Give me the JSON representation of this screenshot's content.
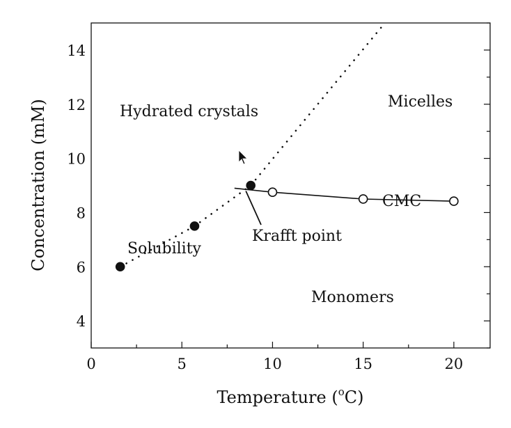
{
  "chart_data": {
    "type": "scatter",
    "xlabel_main": "Temperature (",
    "xlabel_sup": "o",
    "xlabel_end": "C)",
    "ylabel": "Concentration (mM)",
    "xlim": [
      0,
      22
    ],
    "ylim": [
      3,
      15
    ],
    "x_ticks": [
      0,
      5,
      10,
      15,
      20
    ],
    "y_ticks": [
      4,
      6,
      8,
      10,
      12,
      14
    ],
    "series": [
      {
        "name": "Solubility",
        "marker": "filled-circle",
        "x": [
          1.6,
          5.7,
          8.8
        ],
        "y": [
          6.0,
          7.5,
          9.0
        ]
      },
      {
        "name": "CMC",
        "marker": "open-circle",
        "x": [
          10,
          15,
          20
        ],
        "y": [
          8.75,
          8.5,
          8.42
        ]
      }
    ],
    "solubility_curve": {
      "style": "dotted",
      "x": [
        1.6,
        5.7,
        8.8,
        12.0,
        16.2
      ],
      "y": [
        6.0,
        7.5,
        9.0,
        11.6,
        15.0
      ]
    },
    "cmc_line": {
      "style": "solid",
      "x": [
        7.9,
        10,
        15,
        20
      ],
      "y": [
        8.9,
        8.75,
        8.5,
        8.42
      ]
    },
    "annotations": {
      "hydrated_crystals": "Hydrated crystals",
      "micelles": "Micelles",
      "monomers": "Monomers",
      "solubility": "Solubility",
      "krafft_point": "Krafft point",
      "cmc": "CMC"
    },
    "grid": false,
    "legend": "none",
    "colors": {
      "marks": "#111111",
      "background": "#ffffff"
    }
  }
}
